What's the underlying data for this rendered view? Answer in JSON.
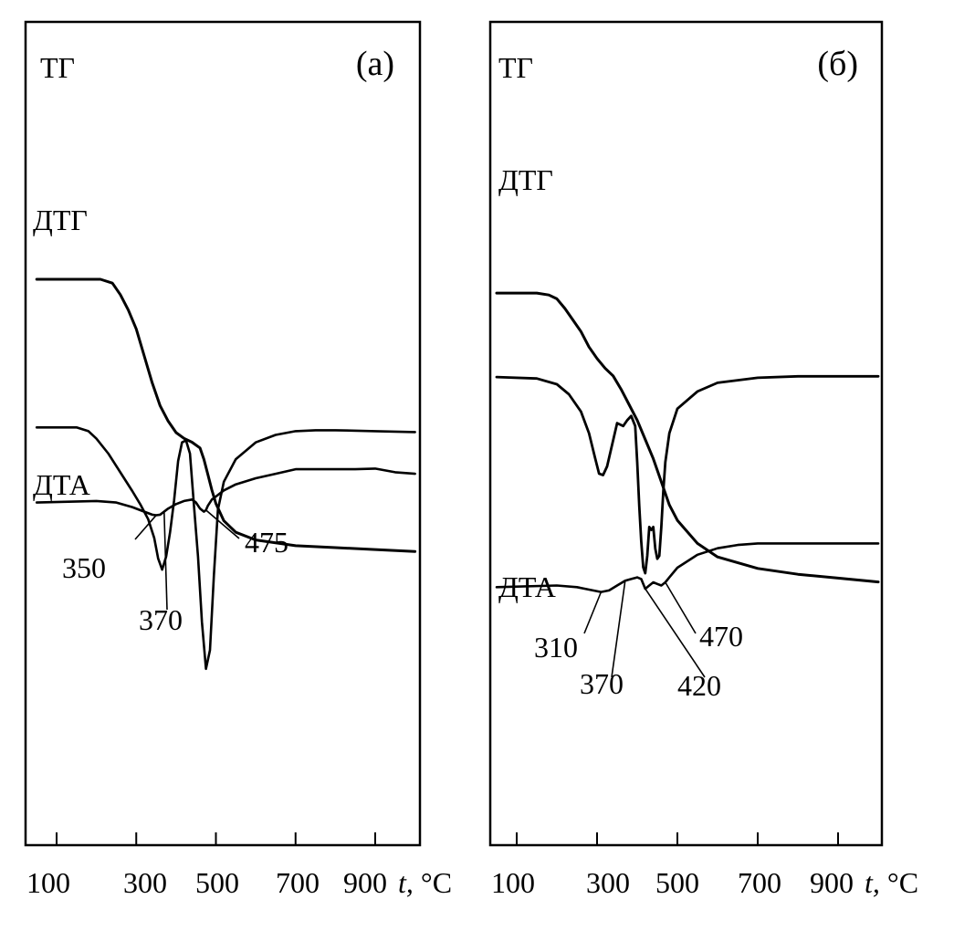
{
  "chart_data": [
    {
      "type": "line",
      "panel_label": "(a)",
      "xlabel": "t, °C",
      "x_ticks": [
        100,
        300,
        500,
        700,
        900
      ],
      "xlim": [
        50,
        1000
      ],
      "y_ticks": [],
      "series": [
        {
          "name": "ТГ",
          "x": [
            50,
            210,
            240,
            260,
            280,
            300,
            320,
            340,
            360,
            380,
            400,
            420,
            440,
            460,
            470,
            480,
            490,
            500,
            520,
            550,
            600,
            700,
            800,
            900,
            1000
          ],
          "y": [
            0.95,
            0.95,
            0.94,
            0.91,
            0.87,
            0.82,
            0.75,
            0.68,
            0.62,
            0.58,
            0.55,
            0.535,
            0.525,
            0.51,
            0.48,
            0.44,
            0.4,
            0.365,
            0.32,
            0.29,
            0.27,
            0.255,
            0.25,
            0.245,
            0.24
          ]
        },
        {
          "name": "ДТГ",
          "x": [
            50,
            150,
            180,
            200,
            230,
            260,
            290,
            310,
            330,
            345,
            355,
            365,
            375,
            385,
            395,
            405,
            415,
            425,
            435,
            445,
            455,
            465,
            475,
            485,
            495,
            505,
            520,
            550,
            600,
            650,
            700,
            750,
            800,
            900,
            1000
          ],
          "y": [
            0.74,
            0.74,
            0.72,
            0.68,
            0.6,
            0.5,
            0.4,
            0.33,
            0.25,
            0.15,
            0.04,
            -0.02,
            0.05,
            0.18,
            0.35,
            0.56,
            0.66,
            0.67,
            0.6,
            0.32,
            0.05,
            -0.3,
            -0.55,
            -0.45,
            -0.05,
            0.3,
            0.45,
            0.57,
            0.66,
            0.7,
            0.72,
            0.725,
            0.725,
            0.72,
            0.715
          ]
        },
        {
          "name": "ДТА",
          "x": [
            50,
            200,
            250,
            290,
            320,
            340,
            350,
            360,
            370,
            380,
            400,
            420,
            440,
            450,
            460,
            470,
            475,
            480,
            490,
            500,
            520,
            550,
            600,
            650,
            700,
            750,
            800,
            850,
            900,
            950,
            1000
          ],
          "y": [
            0.2,
            0.205,
            0.2,
            0.185,
            0.17,
            0.16,
            0.158,
            0.16,
            0.17,
            0.18,
            0.195,
            0.205,
            0.21,
            0.2,
            0.18,
            0.17,
            0.175,
            0.19,
            0.21,
            0.22,
            0.24,
            0.26,
            0.28,
            0.295,
            0.31,
            0.31,
            0.31,
            0.31,
            0.312,
            0.3,
            0.295
          ]
        }
      ],
      "annotations": [
        {
          "text": "350",
          "x": 350,
          "y": 0.158
        },
        {
          "text": "370",
          "x": 370,
          "y": 0.17
        },
        {
          "text": "475",
          "x": 475,
          "y": 0.175
        }
      ]
    },
    {
      "type": "line",
      "panel_label": "(б)",
      "xlabel": "t, °C",
      "x_ticks": [
        100,
        300,
        500,
        700,
        900
      ],
      "xlim": [
        50,
        1000
      ],
      "y_ticks": [],
      "series": [
        {
          "name": "ТГ",
          "x": [
            50,
            150,
            180,
            200,
            220,
            240,
            260,
            280,
            300,
            320,
            340,
            360,
            380,
            400,
            420,
            440,
            460,
            480,
            500,
            550,
            600,
            700,
            800,
            900,
            1000
          ],
          "y": [
            0.95,
            0.95,
            0.945,
            0.935,
            0.91,
            0.88,
            0.85,
            0.81,
            0.78,
            0.755,
            0.735,
            0.7,
            0.66,
            0.62,
            0.57,
            0.52,
            0.46,
            0.4,
            0.36,
            0.3,
            0.265,
            0.235,
            0.22,
            0.21,
            0.2
          ]
        },
        {
          "name": "ДТГ",
          "x": [
            50,
            150,
            200,
            230,
            260,
            280,
            295,
            305,
            315,
            325,
            340,
            350,
            365,
            375,
            385,
            395,
            400,
            405,
            410,
            415,
            420,
            425,
            430,
            435,
            440,
            445,
            450,
            455,
            460,
            465,
            470,
            480,
            500,
            550,
            600,
            700,
            800,
            900,
            1000
          ],
          "y": [
            0.74,
            0.73,
            0.69,
            0.62,
            0.5,
            0.35,
            0.18,
            0.07,
            0.06,
            0.12,
            0.3,
            0.42,
            0.4,
            0.44,
            0.47,
            0.4,
            0.15,
            -0.15,
            -0.4,
            -0.58,
            -0.62,
            -0.5,
            -0.3,
            -0.32,
            -0.3,
            -0.45,
            -0.52,
            -0.5,
            -0.3,
            -0.05,
            0.15,
            0.35,
            0.52,
            0.64,
            0.7,
            0.735,
            0.745,
            0.745,
            0.745
          ]
        },
        {
          "name": "ДТА",
          "x": [
            50,
            200,
            250,
            290,
            310,
            330,
            350,
            370,
            385,
            400,
            410,
            420,
            430,
            440,
            450,
            460,
            470,
            480,
            500,
            550,
            600,
            650,
            700,
            750,
            800,
            850,
            900,
            1000
          ],
          "y": [
            0.14,
            0.145,
            0.14,
            0.13,
            0.125,
            0.13,
            0.145,
            0.16,
            0.165,
            0.17,
            0.165,
            0.135,
            0.145,
            0.155,
            0.15,
            0.145,
            0.155,
            0.17,
            0.2,
            0.24,
            0.26,
            0.27,
            0.275,
            0.275,
            0.275,
            0.275,
            0.275,
            0.275
          ]
        }
      ],
      "annotations": [
        {
          "text": "310",
          "x": 310,
          "y": 0.125
        },
        {
          "text": "370",
          "x": 370,
          "y": 0.16
        },
        {
          "text": "420",
          "x": 420,
          "y": 0.135
        },
        {
          "text": "470",
          "x": 470,
          "y": 0.155
        }
      ]
    }
  ]
}
